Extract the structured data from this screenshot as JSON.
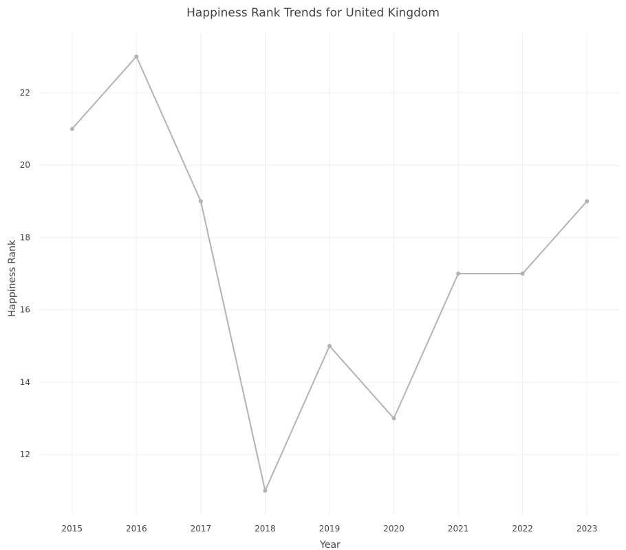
{
  "chart_data": {
    "type": "line",
    "title": "Happiness Rank Trends for United Kingdom",
    "xlabel": "Year",
    "ylabel": "Happiness Rank",
    "x": [
      2015,
      2016,
      2017,
      2018,
      2019,
      2020,
      2021,
      2022,
      2023
    ],
    "series": [
      {
        "values": [
          21,
          23,
          19,
          11,
          15,
          13,
          17,
          17,
          19
        ]
      }
    ],
    "x_ticks": [
      "2015",
      "2016",
      "2017",
      "2018",
      "2019",
      "2020",
      "2021",
      "2022",
      "2023"
    ],
    "y_ticks": [
      12,
      14,
      16,
      18,
      20,
      22
    ],
    "xlim": [
      2014.5,
      2023.5
    ],
    "ylim": [
      10.35,
      23.65
    ],
    "grid": true,
    "legend": "none",
    "colors": {
      "line": "#b3b3b3",
      "grid": "#eeeeee",
      "text": "#444444"
    }
  }
}
